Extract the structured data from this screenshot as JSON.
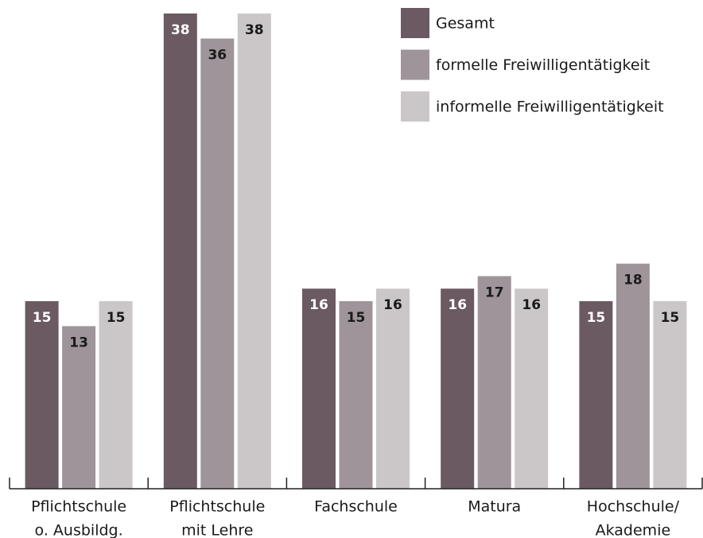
{
  "chart_data": {
    "type": "bar",
    "categories": [
      [
        "Pflichtschule",
        "o. Ausbildg."
      ],
      [
        "Pflichtschule",
        "mit Lehre"
      ],
      [
        "Fachschule"
      ],
      [
        "Matura"
      ],
      [
        "Hochschule/",
        "Akademie"
      ]
    ],
    "series": [
      {
        "name": "Gesamt",
        "color": "#6b5a62",
        "label_color": "#ffffff",
        "values": [
          15,
          38,
          16,
          16,
          15
        ]
      },
      {
        "name": "formelle Freiwilligentätigkeit",
        "color": "#9e9499",
        "label_color": "#1a1a1a",
        "values": [
          13,
          36,
          15,
          17,
          18
        ]
      },
      {
        "name": "informelle Freiwilligentätigkeit",
        "color": "#cbc6c8",
        "label_color": "#1a1a1a",
        "values": [
          15,
          38,
          16,
          16,
          15
        ]
      }
    ],
    "ylim": [
      0,
      38
    ]
  }
}
